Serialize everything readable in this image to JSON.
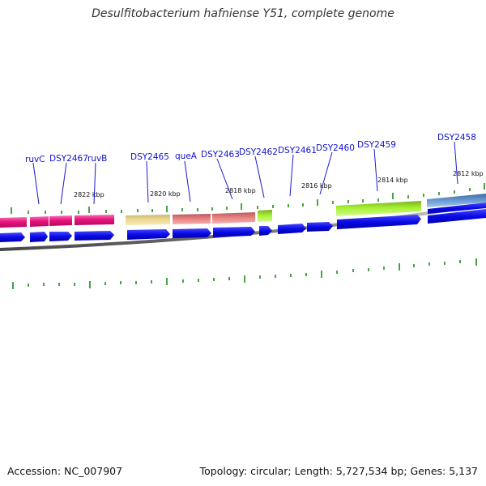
{
  "title": "Desulfitobacterium hafniense Y51, complete genome",
  "footer": {
    "accession": "Accession: NC_007907",
    "stats": "Topology: circular; Length: 5,727,534 bp; Genes: 5,137"
  },
  "colors": {
    "forward_gene": "#0a0ae6",
    "callout_line": "#1a1ad0",
    "tick": "#1a8c1a",
    "backbone": "#888888"
  },
  "kbp_labels": [
    "2822 kbp",
    "2820 kbp",
    "2818 kbp",
    "2816 kbp",
    "2814 kbp",
    "2812 kbp"
  ],
  "gene_labels": [
    "ruvC",
    "DSY2467",
    "ruvB",
    "DSY2465",
    "queA",
    "DSY2463",
    "DSY2462",
    "DSY2461",
    "DSY2460",
    "DSY2459",
    "DSY2458"
  ],
  "feature_colors": {
    "ruvC": "#e8147c",
    "DSY2467": "#e8147c",
    "ruvB": "#e8147c",
    "DSY2465": "#eed890",
    "queA": "#e88080",
    "DSY2463": "#e88080",
    "DSY2462": "#a6e633",
    "DSY2459": "#a6f033",
    "DSY2458": "#5c8cc8"
  }
}
